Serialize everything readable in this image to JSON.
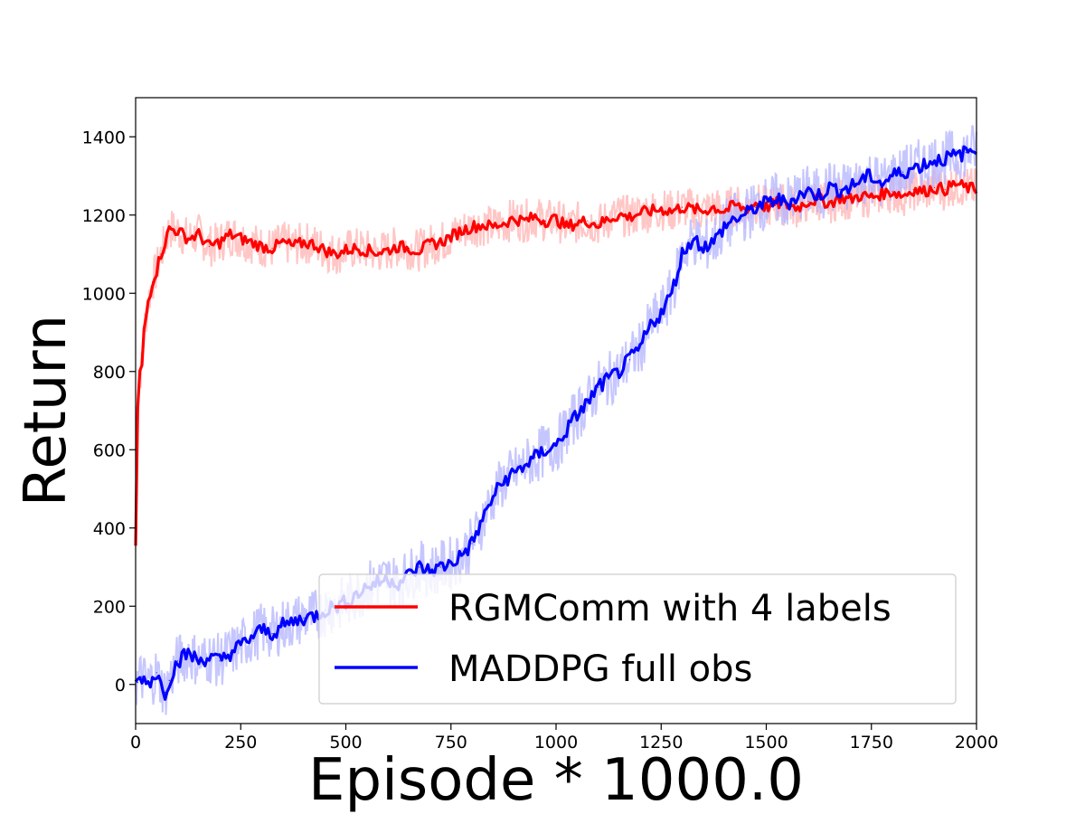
{
  "chart_data": {
    "type": "line",
    "title": "",
    "xlabel": "Episode * 1000.0",
    "ylabel": "Return",
    "xlim": [
      0,
      2000
    ],
    "ylim": [
      -100,
      1500
    ],
    "xticks": [
      "0",
      "250",
      "500",
      "750",
      "1000",
      "1250",
      "1500",
      "1750",
      "2000"
    ],
    "yticks": [
      "0",
      "200",
      "400",
      "600",
      "800",
      "1000",
      "1200",
      "1400"
    ],
    "grid": false,
    "legend_position": "lower-right",
    "x": [
      0,
      5,
      10,
      15,
      20,
      30,
      40,
      50,
      60,
      70,
      80,
      100,
      125,
      150,
      175,
      200,
      225,
      250,
      275,
      300,
      325,
      350,
      375,
      400,
      425,
      450,
      475,
      500,
      525,
      550,
      575,
      600,
      625,
      650,
      675,
      700,
      725,
      750,
      775,
      800,
      825,
      850,
      875,
      900,
      925,
      950,
      975,
      1000,
      1025,
      1050,
      1075,
      1100,
      1125,
      1150,
      1175,
      1200,
      1225,
      1250,
      1275,
      1300,
      1325,
      1350,
      1375,
      1400,
      1425,
      1450,
      1475,
      1500,
      1525,
      1550,
      1575,
      1600,
      1625,
      1650,
      1675,
      1700,
      1725,
      1750,
      1775,
      1800,
      1825,
      1850,
      1875,
      1900,
      1925,
      1950,
      1975,
      2000
    ],
    "series": [
      {
        "name": "RGMComm with 4 labels",
        "color": "#ff0000",
        "values": [
          360,
          700,
          800,
          810,
          900,
          980,
          1030,
          1060,
          1100,
          1130,
          1165,
          1160,
          1140,
          1150,
          1120,
          1130,
          1150,
          1140,
          1130,
          1120,
          1115,
          1130,
          1120,
          1130,
          1125,
          1110,
          1100,
          1110,
          1115,
          1110,
          1105,
          1110,
          1120,
          1115,
          1110,
          1125,
          1130,
          1145,
          1160,
          1170,
          1175,
          1170,
          1180,
          1190,
          1185,
          1195,
          1185,
          1190,
          1170,
          1180,
          1185,
          1175,
          1190,
          1200,
          1195,
          1205,
          1210,
          1215,
          1210,
          1220,
          1215,
          1210,
          1220,
          1210,
          1225,
          1215,
          1230,
          1220,
          1230,
          1225,
          1220,
          1235,
          1240,
          1230,
          1245,
          1240,
          1250,
          1245,
          1255,
          1260,
          1250,
          1265,
          1260,
          1270,
          1265,
          1280,
          1270,
          1265
        ]
      },
      {
        "name": "MADDPG full obs",
        "color": "#0000ff",
        "values": [
          10,
          5,
          15,
          20,
          10,
          5,
          15,
          30,
          0,
          -20,
          10,
          60,
          80,
          60,
          70,
          60,
          80,
          100,
          120,
          140,
          130,
          150,
          160,
          170,
          175,
          190,
          200,
          210,
          230,
          250,
          260,
          270,
          260,
          280,
          300,
          290,
          300,
          310,
          330,
          360,
          420,
          480,
          520,
          540,
          560,
          580,
          600,
          610,
          650,
          690,
          720,
          760,
          780,
          800,
          830,
          860,
          920,
          950,
          1000,
          1100,
          1140,
          1120,
          1130,
          1170,
          1190,
          1200,
          1220,
          1230,
          1240,
          1230,
          1250,
          1260,
          1250,
          1270,
          1265,
          1270,
          1290,
          1300,
          1280,
          1300,
          1310,
          1320,
          1330,
          1340,
          1345,
          1350,
          1360,
          1370
        ]
      }
    ]
  }
}
